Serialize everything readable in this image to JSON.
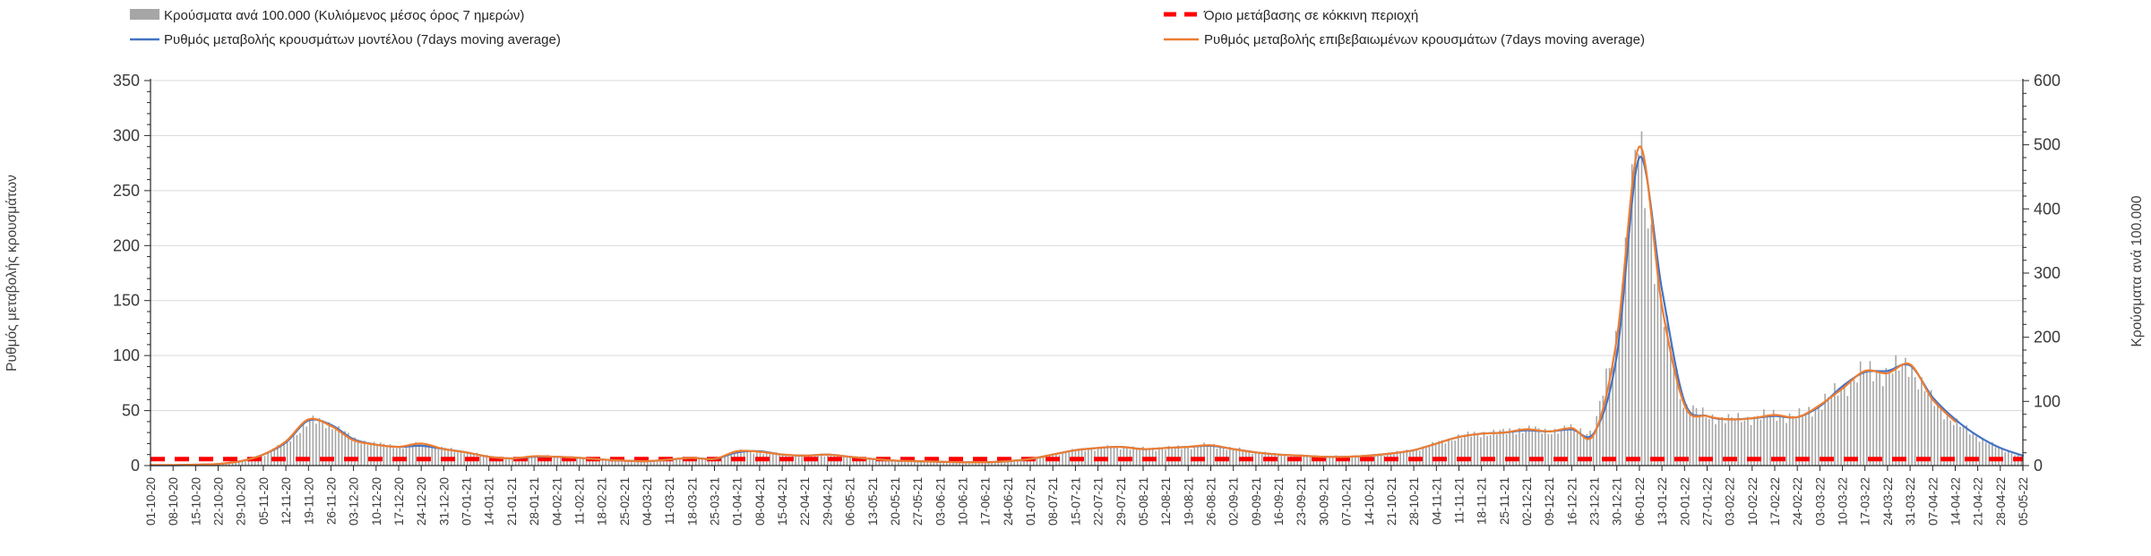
{
  "chart_data": {
    "type": "combo-bar-line",
    "title": "",
    "grid": "horizontal",
    "background": "#ffffff",
    "gridline_color": "#d9d9d9",
    "axis_color": "#262626",
    "tick_label_color": "#404040",
    "legend_position": "top",
    "x_labels": [
      "01-10-20",
      "08-10-20",
      "15-10-20",
      "22-10-20",
      "29-10-20",
      "05-11-20",
      "12-11-20",
      "19-11-20",
      "26-11-20",
      "03-12-20",
      "10-12-20",
      "17-12-20",
      "24-12-20",
      "31-12-20",
      "07-01-21",
      "14-01-21",
      "21-01-21",
      "28-01-21",
      "04-02-21",
      "11-02-21",
      "18-02-21",
      "25-02-21",
      "04-03-21",
      "11-03-21",
      "18-03-21",
      "25-03-21",
      "01-04-21",
      "08-04-21",
      "15-04-21",
      "22-04-21",
      "29-04-21",
      "06-05-21",
      "13-05-21",
      "20-05-21",
      "27-05-21",
      "03-06-21",
      "10-06-21",
      "17-06-21",
      "24-06-21",
      "01-07-21",
      "08-07-21",
      "15-07-21",
      "22-07-21",
      "29-07-21",
      "05-08-21",
      "12-08-21",
      "19-08-21",
      "26-08-21",
      "02-09-21",
      "09-09-21",
      "16-09-21",
      "23-09-21",
      "30-09-21",
      "07-10-21",
      "14-10-21",
      "21-10-21",
      "28-10-21",
      "04-11-21",
      "11-11-21",
      "18-11-21",
      "25-11-21",
      "02-12-21",
      "09-12-21",
      "16-12-21",
      "23-12-21",
      "30-12-21",
      "06-01-22",
      "13-01-22",
      "20-01-22",
      "27-01-22",
      "03-02-22",
      "10-02-22",
      "17-02-22",
      "24-02-22",
      "03-03-22",
      "10-03-22",
      "17-03-22",
      "24-03-22",
      "31-03-22",
      "07-04-22",
      "14-04-22",
      "21-04-22",
      "28-04-22",
      "05-05-22"
    ],
    "series": [
      {
        "name": "Κρούσματα ανά 100.000 (Κυλιόμενος μέσος όρος 7 ημερών)",
        "type": "bar",
        "axis": "right",
        "color": "#a6a6a6",
        "values": [
          1,
          1,
          1,
          3,
          7,
          17,
          37,
          71,
          63,
          40,
          33,
          29,
          34,
          26,
          21,
          14,
          11,
          15,
          14,
          12,
          9,
          8,
          7,
          9,
          12,
          10,
          22,
          21,
          17,
          15,
          17,
          14,
          10,
          8,
          7,
          6,
          5,
          5,
          7,
          10,
          17,
          24,
          27,
          29,
          26,
          27,
          29,
          32,
          26,
          21,
          17,
          15,
          14,
          14,
          15,
          19,
          24,
          34,
          45,
          50,
          52,
          57,
          53,
          58,
          50,
          200,
          510,
          250,
          95,
          77,
          72,
          74,
          79,
          75,
          94,
          120,
          147,
          144,
          158,
          103,
          69,
          46,
          27,
          15
        ]
      },
      {
        "name": "Ρυθμός μεταβολής κρουσμάτων μοντέλου (7days moving average)",
        "type": "line",
        "axis": "left",
        "color": "#4472c4",
        "values": [
          0.3,
          0.3,
          0.8,
          1.5,
          4,
          10,
          21,
          41,
          37,
          24,
          19,
          17,
          18,
          15,
          12,
          8,
          6.5,
          8,
          8,
          7,
          5.5,
          4.5,
          4,
          5.5,
          7,
          6,
          12,
          13,
          10,
          9,
          10,
          8,
          6,
          4.5,
          4,
          3.5,
          3,
          3,
          4,
          6,
          10,
          14,
          16,
          17,
          15,
          16,
          17,
          18,
          15,
          12,
          10,
          9,
          8,
          8,
          9,
          11,
          14,
          20,
          26,
          29,
          30,
          32,
          31,
          33,
          30,
          100,
          280,
          160,
          58,
          45,
          42,
          43,
          45,
          44,
          54,
          72,
          85,
          86,
          91,
          62,
          42,
          27,
          16,
          9
        ]
      },
      {
        "name": "Ρυθμός μεταβολής επιβεβαιωμένων κρουσμάτων (7days moving average)",
        "type": "line",
        "axis": "left",
        "color": "#ed7d31",
        "values": [
          0.5,
          0.5,
          0.8,
          1.5,
          4,
          10,
          22,
          42,
          36,
          23,
          19,
          17,
          20,
          15,
          12,
          8,
          6.5,
          8.5,
          8,
          7,
          5.5,
          4.5,
          4,
          5.5,
          7,
          6,
          13,
          12.5,
          10,
          9,
          10,
          8,
          6,
          4.5,
          4,
          3.5,
          3,
          3,
          4,
          6,
          10,
          14,
          16,
          17,
          15,
          16,
          17,
          18.5,
          15,
          12,
          10,
          9,
          8,
          8,
          9,
          11,
          14,
          20,
          26,
          29,
          30,
          33,
          31,
          34,
          29,
          115,
          290,
          145,
          55,
          45,
          42,
          43,
          46,
          44,
          55,
          70,
          86,
          84,
          92,
          60,
          40,
          null,
          null,
          null
        ]
      },
      {
        "name": "Όριο μετάβασης σε κόκκινη περιοχή",
        "type": "threshold",
        "axis": "right",
        "color": "#ff0000",
        "value": 10
      }
    ],
    "axes": {
      "left": {
        "title": "Ρυθμός μεταβολής κρουσμάτων",
        "min": 0,
        "max": 350,
        "ticks": [
          0,
          50,
          100,
          150,
          200,
          250,
          300,
          350
        ],
        "minor_step": 10
      },
      "right": {
        "title": "Κρούσματα ανά 100.000",
        "min": 0,
        "max": 600,
        "ticks": [
          0,
          100,
          200,
          300,
          400,
          500,
          600
        ],
        "minor_step": 20
      }
    }
  }
}
